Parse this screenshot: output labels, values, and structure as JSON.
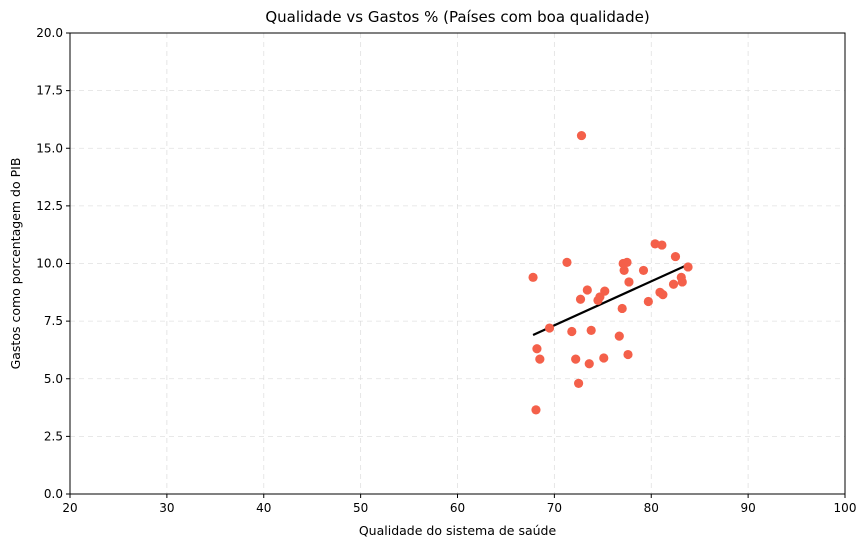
{
  "chart_data": {
    "type": "scatter",
    "title": "Qualidade vs Gastos % (Países com boa qualidade)",
    "xlabel": "Qualidade do sistema de saúde",
    "ylabel": "Gastos como porcentagem do PIB",
    "xlim": [
      20,
      100
    ],
    "ylim": [
      0,
      20
    ],
    "xticks": [
      20,
      30,
      40,
      50,
      60,
      70,
      80,
      90,
      100
    ],
    "yticks": [
      0.0,
      2.5,
      5.0,
      7.5,
      10.0,
      12.5,
      15.0,
      17.5,
      20.0
    ],
    "xtick_labels": [
      "20",
      "30",
      "40",
      "50",
      "60",
      "70",
      "80",
      "90",
      "100"
    ],
    "ytick_labels": [
      "0.0",
      "2.5",
      "5.0",
      "7.5",
      "10.0",
      "12.5",
      "15.0",
      "17.5",
      "20.0"
    ],
    "grid": true,
    "point_color": "#f4604a",
    "trend_color": "#000000",
    "points": [
      {
        "x": 67.8,
        "y": 9.4
      },
      {
        "x": 68.1,
        "y": 3.65
      },
      {
        "x": 68.2,
        "y": 6.3
      },
      {
        "x": 68.5,
        "y": 5.85
      },
      {
        "x": 69.5,
        "y": 7.2
      },
      {
        "x": 71.3,
        "y": 10.05
      },
      {
        "x": 71.8,
        "y": 7.05
      },
      {
        "x": 72.2,
        "y": 5.85
      },
      {
        "x": 72.5,
        "y": 4.8
      },
      {
        "x": 72.7,
        "y": 8.45
      },
      {
        "x": 72.8,
        "y": 15.55
      },
      {
        "x": 73.4,
        "y": 8.85
      },
      {
        "x": 73.6,
        "y": 5.65
      },
      {
        "x": 73.8,
        "y": 7.1
      },
      {
        "x": 74.5,
        "y": 8.4
      },
      {
        "x": 74.7,
        "y": 8.55
      },
      {
        "x": 75.1,
        "y": 5.9
      },
      {
        "x": 75.2,
        "y": 8.8
      },
      {
        "x": 76.7,
        "y": 6.85
      },
      {
        "x": 77.0,
        "y": 8.05
      },
      {
        "x": 77.1,
        "y": 10.0
      },
      {
        "x": 77.2,
        "y": 9.7
      },
      {
        "x": 77.5,
        "y": 10.05
      },
      {
        "x": 77.6,
        "y": 6.05
      },
      {
        "x": 77.7,
        "y": 9.2
      },
      {
        "x": 79.2,
        "y": 9.7
      },
      {
        "x": 79.7,
        "y": 8.35
      },
      {
        "x": 80.4,
        "y": 10.85
      },
      {
        "x": 80.9,
        "y": 8.75
      },
      {
        "x": 81.1,
        "y": 10.8
      },
      {
        "x": 81.2,
        "y": 8.65
      },
      {
        "x": 82.3,
        "y": 9.1
      },
      {
        "x": 82.5,
        "y": 10.3
      },
      {
        "x": 83.1,
        "y": 9.4
      },
      {
        "x": 83.2,
        "y": 9.2
      },
      {
        "x": 83.8,
        "y": 9.85
      }
    ],
    "trendline": {
      "x": [
        67.8,
        83.8
      ],
      "y": [
        6.9,
        9.95
      ]
    }
  }
}
